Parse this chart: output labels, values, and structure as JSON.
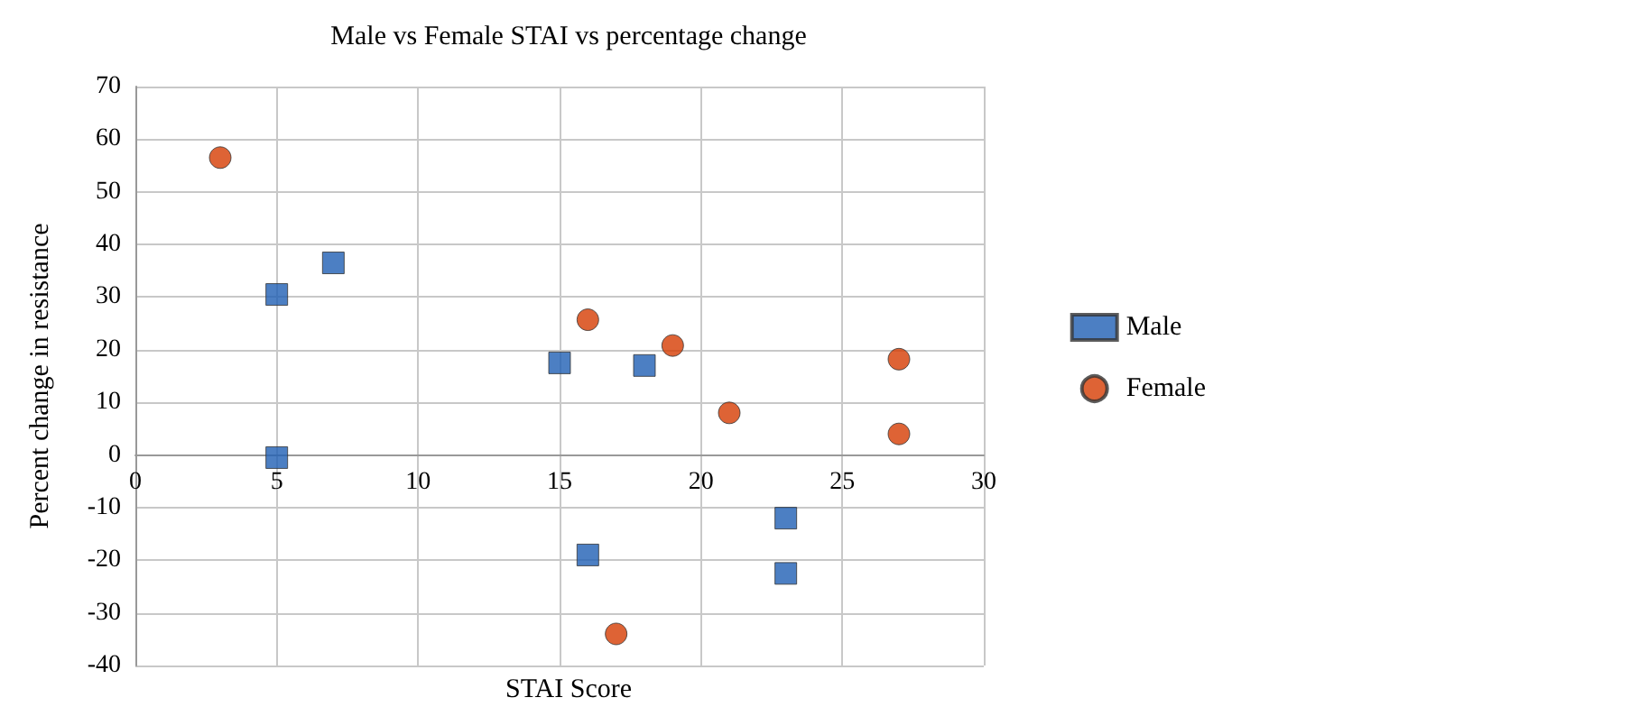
{
  "chart_data": {
    "type": "scatter",
    "title": "Male vs Female STAI vs percentage change",
    "xlabel": "STAI Score",
    "ylabel": "Percent change in resistance",
    "xlim": [
      0,
      30
    ],
    "xticks": [
      0,
      5,
      10,
      15,
      20,
      25,
      30
    ],
    "ylim": [
      -40,
      70
    ],
    "yticks": [
      -40,
      -30,
      -20,
      -10,
      0,
      10,
      20,
      30,
      40,
      50,
      60,
      70
    ],
    "grid": true,
    "legend": "right",
    "series": [
      {
        "name": "Male",
        "color": "#1f5fb4",
        "marker": "square",
        "x": [
          5,
          7,
          5,
          15,
          18,
          16,
          23,
          23
        ],
        "values": [
          30.5,
          36.5,
          -0.5,
          17.5,
          17,
          -19,
          -12,
          -22.5
        ]
      },
      {
        "name": "Female",
        "color": "#d63c02",
        "marker": "circle",
        "x": [
          3,
          16,
          19,
          21,
          27,
          27,
          17
        ],
        "values": [
          56.5,
          25.7,
          20.8,
          8,
          18.2,
          4,
          -34
        ]
      }
    ]
  }
}
